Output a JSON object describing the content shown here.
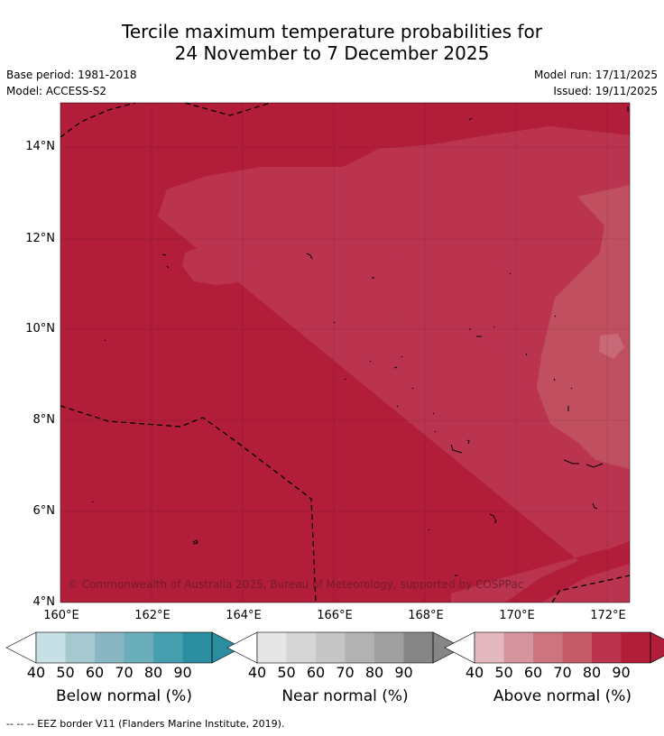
{
  "title_line1": "Tercile maximum temperature probabilities for",
  "title_line2": "24 November to 7 December 2025",
  "base_period": "Base period: 1981-2018",
  "model": "Model: ACCESS-S2",
  "model_run": "Model run: 17/11/2025",
  "issued": "Issued: 19/11/2025",
  "copyright": "© Commonwealth of Australia 2025, Bureau of Meteorology, supported by COSPPac",
  "y_ticks": [
    "14°N",
    "12°N",
    "10°N",
    "8°N",
    "6°N",
    "4°N"
  ],
  "x_ticks": [
    "160°E",
    "162°E",
    "164°E",
    "166°E",
    "168°E",
    "170°E",
    "172°E"
  ],
  "colorbars": [
    {
      "label": "Below normal (%)",
      "ticks": [
        "40",
        "50",
        "60",
        "70",
        "80",
        "90"
      ],
      "colors": [
        "#c7e0e6",
        "#a6c8cf",
        "#88b6c2",
        "#6aaeb9",
        "#479eae",
        "#2a8ea0"
      ]
    },
    {
      "label": "Near normal (%)",
      "ticks": [
        "40",
        "50",
        "60",
        "70",
        "80",
        "90"
      ],
      "colors": [
        "#e6e6e6",
        "#d6d6d6",
        "#c6c6c6",
        "#b2b2b2",
        "#a0a0a0",
        "#868686"
      ]
    },
    {
      "label": "Above normal (%)",
      "ticks": [
        "40",
        "50",
        "60",
        "70",
        "80",
        "90"
      ],
      "colors": [
        "#e3b9bf",
        "#d6959e",
        "#cc7580",
        "#c55a68",
        "#b9344c",
        "#b21e3a"
      ]
    }
  ],
  "footnote": "--  --  -- EEZ border V11 (Flanders Marine Institute, 2019).",
  "map_colors": {
    "above_90": "#b21e3a",
    "above_80": "#ba3450",
    "above_70": "#c0505f",
    "above_60": "#c96876"
  }
}
